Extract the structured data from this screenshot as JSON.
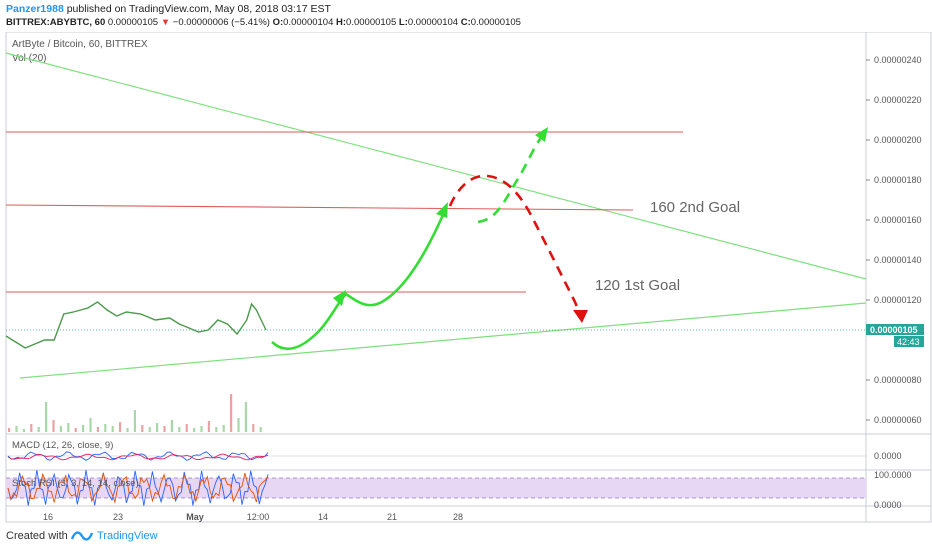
{
  "header": {
    "author": "Panzer1988",
    "published": "published on TradingView.com, May 08, 2018 03:17 EST",
    "symbol_line": "BITTREX:ABYBTC, 60",
    "last": "0.00000105",
    "change_arrow": "▼",
    "change": "−0.00000006 (−5.41%)",
    "o_label": "O:",
    "o": "0.00000104",
    "h_label": "H:",
    "h": "0.00000105",
    "l_label": "L:",
    "l": "0.00000104",
    "c_label": "C:",
    "c": "0.00000105"
  },
  "chart_data": {
    "type": "line",
    "title": "ArtByte / Bitcoin, 60, BITTREX",
    "volume_label": "Vol (20)",
    "price_axis": {
      "range": [
        5.5e-07,
        2.5e-06
      ],
      "ticks": [
        "0.00000240",
        "0.00000220",
        "0.00000200",
        "0.00000180",
        "0.00000160",
        "0.00000140",
        "0.00000120",
        "0.00000080",
        "0.00000060"
      ],
      "tick_values": [
        240,
        220,
        200,
        180,
        160,
        140,
        120,
        80,
        60
      ],
      "current_price_label": "0.00000105",
      "current_price": 105,
      "time_to_close": "42:43"
    },
    "time_axis": {
      "ticks": [
        "16",
        "23",
        "May",
        "12:00",
        "14",
        "21",
        "28"
      ]
    },
    "price_series_approx": [
      {
        "t": 0,
        "p": 102
      },
      {
        "t": 4,
        "p": 96
      },
      {
        "t": 8,
        "p": 100
      },
      {
        "t": 10,
        "p": 100
      },
      {
        "t": 12,
        "p": 113
      },
      {
        "t": 14,
        "p": 114
      },
      {
        "t": 17,
        "p": 116
      },
      {
        "t": 19,
        "p": 119
      },
      {
        "t": 21,
        "p": 115
      },
      {
        "t": 23,
        "p": 112
      },
      {
        "t": 25,
        "p": 114
      },
      {
        "t": 28,
        "p": 113
      },
      {
        "t": 31,
        "p": 110
      },
      {
        "t": 34,
        "p": 111
      },
      {
        "t": 36,
        "p": 108
      },
      {
        "t": 38,
        "p": 106
      },
      {
        "t": 40,
        "p": 104
      },
      {
        "t": 42,
        "p": 105
      },
      {
        "t": 44,
        "p": 110
      },
      {
        "t": 46,
        "p": 108
      },
      {
        "t": 48,
        "p": 103
      },
      {
        "t": 50,
        "p": 110
      },
      {
        "t": 51,
        "p": 118
      },
      {
        "t": 52,
        "p": 115
      },
      {
        "t": 53,
        "p": 110
      },
      {
        "t": 54,
        "p": 105
      }
    ],
    "resistance_levels": [
      204,
      166,
      124
    ],
    "annotations": [
      "160 2nd Goal",
      "120 1st Goal"
    ],
    "indicators": [
      {
        "name": "MACD (12, 26, close, 9)",
        "axis_label": "0.0000"
      },
      {
        "name": "Stoch RSI (3, 3, 14, 14, close)",
        "axis_labels": [
          "100.0000",
          "0.0000"
        ]
      }
    ]
  },
  "footer": {
    "created_with": "Created with",
    "brand": "TradingView"
  }
}
